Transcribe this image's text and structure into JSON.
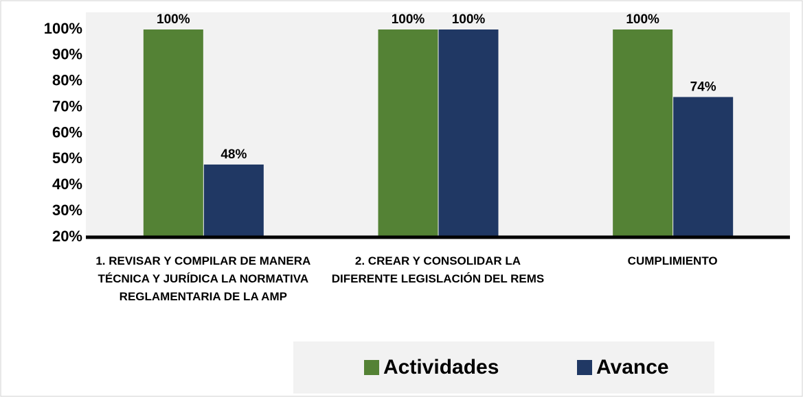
{
  "chart_data": {
    "type": "bar",
    "categories": [
      "1. REVISAR Y COMPILAR DE MANERA TÉCNICA Y JURÍDICA LA NORMATIVA REGLAMENTARIA DE LA AMP",
      "2. CREAR Y CONSOLIDAR LA DIFERENTE LEGISLACIÓN DEL REMS",
      "CUMPLIMIENTO"
    ],
    "series": [
      {
        "name": "Actividades",
        "color": "#548235",
        "values": [
          100,
          100,
          100
        ],
        "value_labels": [
          "100%",
          "100%",
          "100%"
        ]
      },
      {
        "name": "Avance",
        "color": "#203864",
        "values": [
          48,
          100,
          74
        ],
        "value_labels": [
          "48%",
          "100%",
          "74%"
        ]
      }
    ],
    "ylim": [
      20,
      100
    ],
    "yticks": [
      {
        "value": 20,
        "label": "20%"
      },
      {
        "value": 30,
        "label": "30%"
      },
      {
        "value": 40,
        "label": "40%"
      },
      {
        "value": 50,
        "label": "50%"
      },
      {
        "value": 60,
        "label": "60%"
      },
      {
        "value": 70,
        "label": "70%"
      },
      {
        "value": 80,
        "label": "80%"
      },
      {
        "value": 90,
        "label": "90%"
      },
      {
        "value": 100,
        "label": "100%"
      }
    ],
    "grid": false,
    "legend": "bottom"
  }
}
